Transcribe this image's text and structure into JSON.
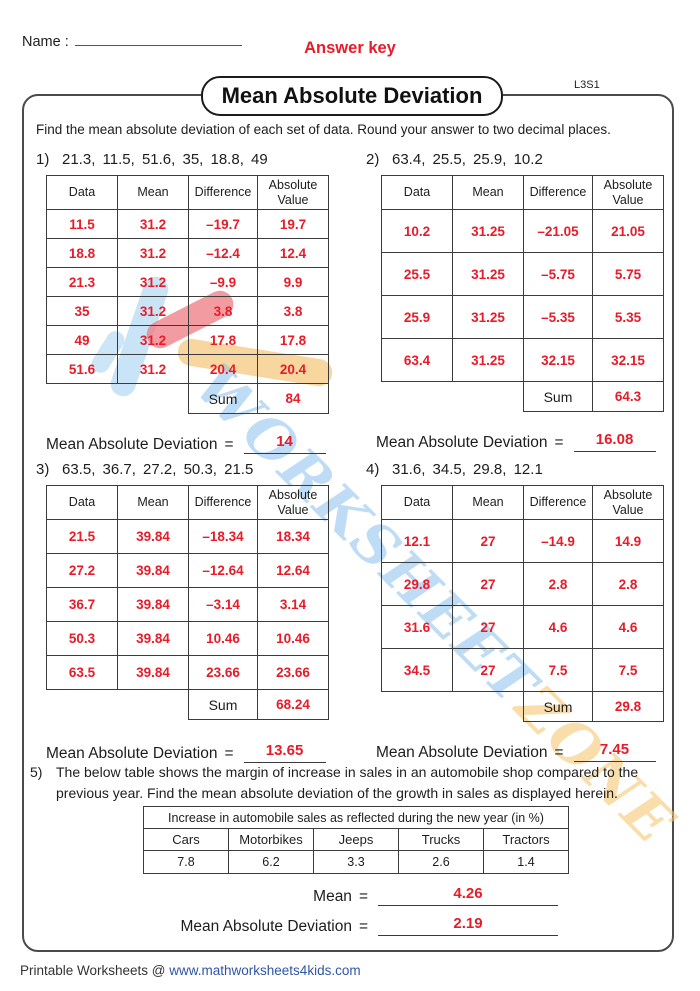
{
  "page": {
    "name_label": "Name :",
    "answer_key": "Answer key",
    "title": "Mean Absolute Deviation",
    "code": "L3S1",
    "instruction": "Find the mean absolute deviation of each set of data. Round your answer to two decimal places.",
    "watermark_part1": "WORKSHEET",
    "watermark_part2": "ZONE",
    "footer_prefix": "Printable Worksheets @ ",
    "footer_link": "www.mathworksheets4kids.com"
  },
  "labels": {
    "mad": "Mean Absolute Deviation",
    "mean": "Mean",
    "equals": "=",
    "sum": "Sum"
  },
  "tables": {
    "headers": [
      "Data",
      "Mean",
      "Difference",
      "Absolute Value"
    ]
  },
  "problems": [
    {
      "number": "1)",
      "dataset": "21.3, 11.5, 51.6, 35, 18.8, 49",
      "rows": [
        [
          "11.5",
          "31.2",
          "–19.7",
          "19.7"
        ],
        [
          "18.8",
          "31.2",
          "–12.4",
          "12.4"
        ],
        [
          "21.3",
          "31.2",
          "–9.9",
          "9.9"
        ],
        [
          "35",
          "31.2",
          "3.8",
          "3.8"
        ],
        [
          "49",
          "31.2",
          "17.8",
          "17.8"
        ],
        [
          "51.6",
          "31.2",
          "20.4",
          "20.4"
        ]
      ],
      "sum": "84",
      "mad": "14"
    },
    {
      "number": "2)",
      "dataset": "63.4, 25.5, 25.9, 10.2",
      "rows": [
        [
          "10.2",
          "31.25",
          "–21.05",
          "21.05"
        ],
        [
          "25.5",
          "31.25",
          "–5.75",
          "5.75"
        ],
        [
          "25.9",
          "31.25",
          "–5.35",
          "5.35"
        ],
        [
          "63.4",
          "31.25",
          "32.15",
          "32.15"
        ]
      ],
      "sum": "64.3",
      "mad": "16.08"
    },
    {
      "number": "3)",
      "dataset": "63.5, 36.7, 27.2, 50.3, 21.5",
      "rows": [
        [
          "21.5",
          "39.84",
          "–18.34",
          "18.34"
        ],
        [
          "27.2",
          "39.84",
          "–12.64",
          "12.64"
        ],
        [
          "36.7",
          "39.84",
          "–3.14",
          "3.14"
        ],
        [
          "50.3",
          "39.84",
          "10.46",
          "10.46"
        ],
        [
          "63.5",
          "39.84",
          "23.66",
          "23.66"
        ]
      ],
      "sum": "68.24",
      "mad": "13.65"
    },
    {
      "number": "4)",
      "dataset": "31.6, 34.5, 29.8, 12.1",
      "rows": [
        [
          "12.1",
          "27",
          "–14.9",
          "14.9"
        ],
        [
          "29.8",
          "27",
          "2.8",
          "2.8"
        ],
        [
          "31.6",
          "27",
          "4.6",
          "4.6"
        ],
        [
          "34.5",
          "27",
          "7.5",
          "7.5"
        ]
      ],
      "sum": "29.8",
      "mad": "7.45"
    }
  ],
  "problem5": {
    "number": "5)",
    "text": "The below table shows the margin of increase in sales in an automobile shop compared to the previous year. Find the mean absolute deviation of the growth in sales as displayed herein.",
    "table_title": "Increase in automobile sales as reflected during the new year (in %)",
    "columns": [
      "Cars",
      "Motorbikes",
      "Jeeps",
      "Trucks",
      "Tractors"
    ],
    "values": [
      "7.8",
      "6.2",
      "3.3",
      "2.6",
      "1.4"
    ],
    "mean": "4.26",
    "mad": "2.19"
  },
  "colors": {
    "accent_red": "#e81b29",
    "link_blue": "#2e55a8"
  }
}
